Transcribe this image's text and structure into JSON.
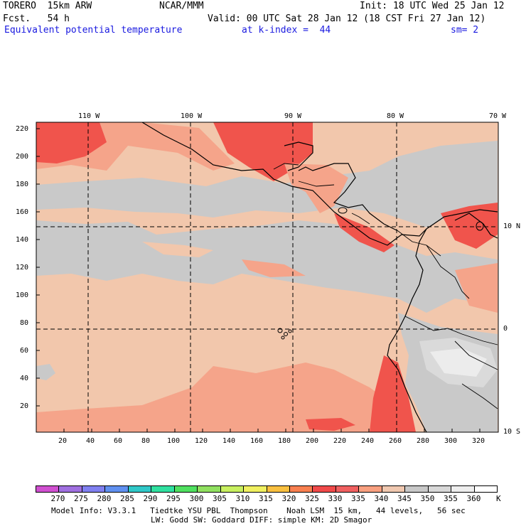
{
  "header": {
    "model": "TORERO  15km ARW",
    "org": "NCAR/MMM",
    "init": "Init: 18 UTC Wed 25 Jan 12",
    "fcst": "Fcst.   54 h",
    "valid": "Valid: 00 UTC Sat 28 Jan 12 (18 CST Fri 27 Jan 12)",
    "field": "Equivalent potential temperature",
    "level": "at k-index =  44",
    "smooth": "sm= 2"
  },
  "map": {
    "lon_labels": [
      "110 W",
      "100 W",
      "90 W",
      "80 W",
      "70 W"
    ],
    "lat_labels": [
      "10 N",
      "0",
      "10 S"
    ],
    "y_ticks": [
      "220",
      "200",
      "180",
      "160",
      "140",
      "120",
      "100",
      "80",
      "60",
      "40",
      "20"
    ],
    "x_ticks": [
      "20",
      "40",
      "60",
      "80",
      "100",
      "120",
      "140",
      "160",
      "180",
      "200",
      "220",
      "240",
      "260",
      "280",
      "300",
      "320"
    ]
  },
  "legend": {
    "values": [
      "270",
      "275",
      "280",
      "285",
      "290",
      "295",
      "300",
      "305",
      "310",
      "315",
      "320",
      "325",
      "330",
      "335",
      "340",
      "345",
      "350",
      "355",
      "360"
    ],
    "unit": "K",
    "colors": [
      "#d050d0",
      "#a070e0",
      "#8080f0",
      "#6090f0",
      "#30c8c8",
      "#30e0a0",
      "#50e060",
      "#90e060",
      "#c8f060",
      "#f0f060",
      "#f8c040",
      "#f88050",
      "#f04a4a",
      "#f06060",
      "#f8a080",
      "#f0c8b0",
      "#c8c8c8",
      "#d8d8d8",
      "#eeeeee",
      "#ffffff"
    ]
  },
  "footer": {
    "line1": "Model Info: V3.3.1   Tiedtke YSU PBL  Thompson    Noah LSM  15 km,   44 levels,   56 sec",
    "line2": "LW: Godd SW: Goddard DIFF: simple KM: 2D Smagor"
  }
}
